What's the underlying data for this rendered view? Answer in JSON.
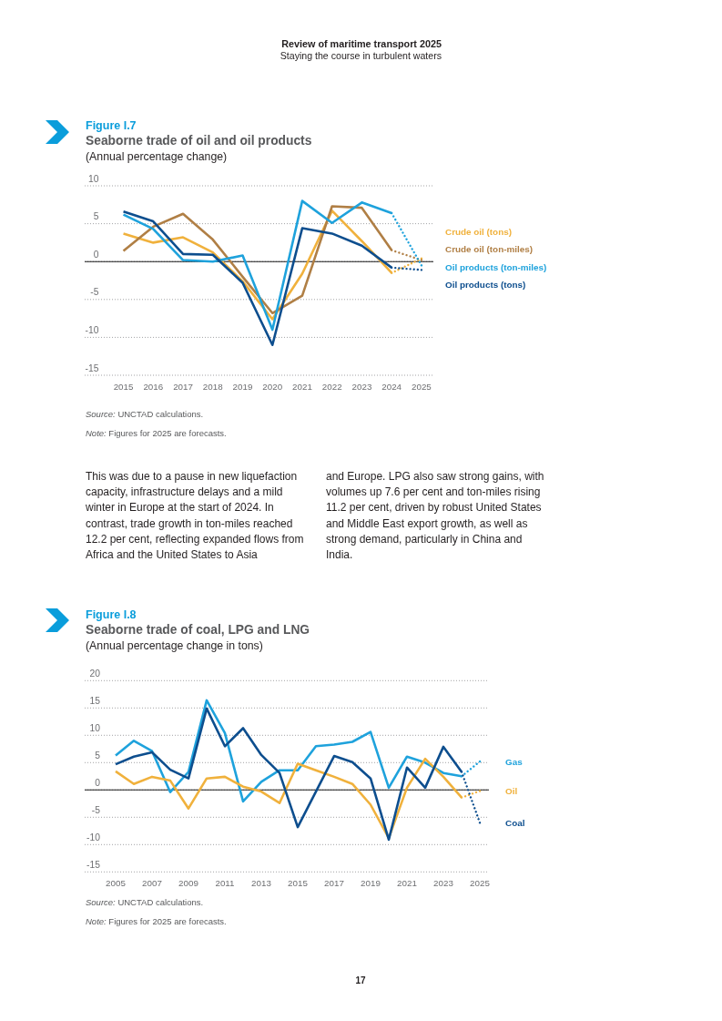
{
  "chart_data": [
    {
      "type": "other",
      "title": "Review of maritime transport 2025",
      "subtitle": "Staying the course in turbulent waters"
    },
    {
      "type": "line",
      "title": "Seaborne trade of oil and oil products",
      "subtitle": "(Annual percentage change)",
      "annotations": [
        "Figure I.7",
        "Source: UNCTAD calculations.",
        "Note: Figures for 2025 are forecasts."
      ],
      "x": [
        2015,
        2016,
        2017,
        2018,
        2019,
        2020,
        2021,
        2022,
        2023,
        2024,
        2025
      ],
      "xlim": [
        2013.7,
        2025.4
      ],
      "xticks": [
        2015,
        2016,
        2017,
        2018,
        2019,
        2020,
        2021,
        2022,
        2023,
        2024,
        2025
      ],
      "ylim": [
        -15,
        10
      ],
      "yticks": [
        -15,
        -10,
        -5,
        0,
        5,
        10
      ],
      "grid": "y",
      "legend": "right",
      "ref_lines": [
        {
          "axis": "y",
          "value": 0,
          "color": "#1a1a1a"
        }
      ],
      "series": [
        {
          "name": "Crude oil (tons)",
          "color": "#f0b13c",
          "values": [
            3.7,
            2.5,
            3.2,
            1.2,
            -2.6,
            -7.6,
            -1.6,
            6.7,
            2.7,
            -1.5,
            null
          ]
        },
        {
          "name": "Crude oil (ton-miles)",
          "color": "#b07f45",
          "values": [
            1.4,
            4.6,
            6.3,
            2.9,
            -2.0,
            -6.8,
            -4.5,
            7.3,
            7.1,
            1.5,
            null
          ]
        },
        {
          "name": "Oil products (ton-miles)",
          "color": "#1ea2dc",
          "values": [
            6.2,
            4.3,
            0.2,
            0.0,
            0.8,
            -9.0,
            8.0,
            5.1,
            7.8,
            6.4,
            null
          ]
        },
        {
          "name": "Oil products (tons)",
          "color": "#0d4e8e",
          "values": [
            6.6,
            5.3,
            1.0,
            0.9,
            -2.8,
            -11.0,
            4.4,
            3.7,
            2.1,
            -0.8,
            null
          ]
        },
        {
          "color": "#f0b13c",
          "line_style": "dotted",
          "values": [
            null,
            null,
            null,
            null,
            null,
            null,
            null,
            null,
            null,
            -1.5,
            0.4
          ]
        },
        {
          "color": "#b07f45",
          "line_style": "dotted",
          "values": [
            null,
            null,
            null,
            null,
            null,
            null,
            null,
            null,
            null,
            1.5,
            0.2
          ]
        },
        {
          "color": "#1ea2dc",
          "line_style": "dotted",
          "values": [
            null,
            null,
            null,
            null,
            null,
            null,
            null,
            null,
            null,
            6.4,
            -0.5
          ]
        },
        {
          "color": "#0d4e8e",
          "line_style": "dotted",
          "values": [
            null,
            null,
            null,
            null,
            null,
            null,
            null,
            null,
            null,
            -0.8,
            -1.1
          ]
        }
      ]
    },
    {
      "type": "other",
      "annotations": [
        "This was due to a pause in new liquefaction capacity, infrastructure delays and a mild winter in Europe at the start of 2024. In contrast, trade growth in ton-miles reached 12.2 per cent, reflecting expanded flows from Africa and the United States to Asia",
        "and Europe. LPG also saw strong gains, with volumes up 7.6 per cent and ton-miles rising 11.2 per cent, driven by robust United States and Middle East export growth, as well as strong demand, particularly in China and India."
      ]
    },
    {
      "type": "line",
      "title": "Seaborne trade of coal, LPG and LNG",
      "subtitle": "(Annual percentage change in tons)",
      "annotations": [
        "Figure I.8",
        "Source: UNCTAD calculations.",
        "Note: Figures for 2025 are forecasts."
      ],
      "x": [
        2005,
        2006,
        2007,
        2008,
        2009,
        2010,
        2011,
        2012,
        2013,
        2014,
        2015,
        2016,
        2017,
        2018,
        2019,
        2020,
        2021,
        2022,
        2023,
        2024,
        2025
      ],
      "xlim": [
        2003.3,
        2025.5
      ],
      "xticks": [
        2005,
        2007,
        2009,
        2011,
        2013,
        2015,
        2017,
        2019,
        2021,
        2023,
        2025
      ],
      "ylim": [
        -15,
        20
      ],
      "yticks": [
        -15,
        -10,
        -5,
        0,
        5,
        10,
        15,
        20
      ],
      "grid": "y",
      "ref_lines": [
        {
          "axis": "y",
          "value": 0,
          "color": "#1a1a1a"
        }
      ],
      "series": [
        {
          "name": "Gas",
          "color": "#1ea2dc",
          "values": [
            6.3,
            9.0,
            7.1,
            -0.4,
            3.3,
            16.4,
            10.4,
            -2.1,
            1.5,
            3.6,
            3.6,
            8.0,
            8.3,
            8.8,
            10.6,
            0.4,
            6.1,
            5.0,
            3.1,
            2.5,
            null
          ]
        },
        {
          "color": "#1ea2dc",
          "line_style": "dotted",
          "values": [
            null,
            null,
            null,
            null,
            null,
            null,
            null,
            null,
            null,
            null,
            null,
            null,
            null,
            null,
            null,
            null,
            null,
            null,
            null,
            2.5,
            5.2
          ]
        },
        {
          "name": "Oil",
          "color": "#f0b13c",
          "values": [
            3.4,
            1.1,
            2.4,
            1.7,
            -3.4,
            2.1,
            2.4,
            0.6,
            -0.3,
            -2.4,
            4.8,
            3.6,
            2.4,
            1.1,
            -2.7,
            -8.8,
            0.4,
            5.7,
            2.4,
            -1.4,
            null
          ]
        },
        {
          "color": "#f0b13c",
          "line_style": "dotted",
          "values": [
            null,
            null,
            null,
            null,
            null,
            null,
            null,
            null,
            null,
            null,
            null,
            null,
            null,
            null,
            null,
            null,
            null,
            null,
            null,
            -1.4,
            -0.2
          ]
        },
        {
          "name": "Coal",
          "color": "#0d4e8e",
          "values": [
            4.7,
            6.1,
            6.9,
            3.7,
            2.1,
            14.9,
            8.0,
            11.3,
            6.4,
            3.1,
            -6.8,
            -0.3,
            6.2,
            5.1,
            2.1,
            -9.1,
            4.1,
            0.4,
            7.9,
            3.3,
            null
          ]
        },
        {
          "color": "#0d4e8e",
          "line_style": "dotted",
          "values": [
            null,
            null,
            null,
            null,
            null,
            null,
            null,
            null,
            null,
            null,
            null,
            null,
            null,
            null,
            null,
            null,
            null,
            null,
            null,
            3.3,
            -6.0
          ]
        }
      ]
    },
    {
      "type": "other",
      "annotations": [
        "17"
      ]
    }
  ]
}
